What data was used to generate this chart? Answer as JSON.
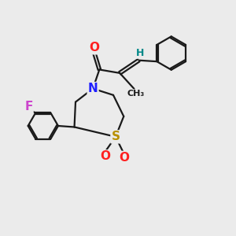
{
  "bg_color": "#ebebeb",
  "bond_color": "#1a1a1a",
  "N_color": "#2020ff",
  "S_color": "#b89000",
  "O_color": "#ff2020",
  "F_color": "#cc44cc",
  "H_color": "#008888",
  "figsize": [
    3.0,
    3.0
  ],
  "dpi": 100,
  "xlim": [
    0,
    10
  ],
  "ylim": [
    0,
    10
  ]
}
